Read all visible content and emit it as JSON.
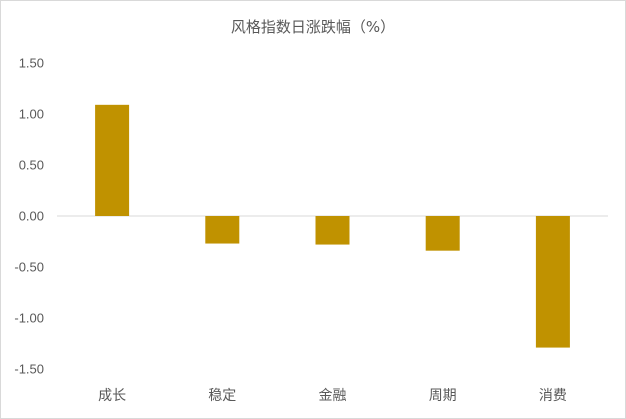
{
  "chart_data": {
    "type": "bar",
    "title": "风格指数日涨跌幅（%）",
    "categories": [
      "成长",
      "稳定",
      "金融",
      "周期",
      "消费"
    ],
    "values": [
      1.09,
      -0.27,
      -0.28,
      -0.34,
      -1.29
    ],
    "ylim": [
      -1.5,
      1.5
    ],
    "yticks": [
      "1.50",
      "1.00",
      "0.50",
      "0.00",
      "-0.50",
      "-1.00",
      "-1.50"
    ],
    "ytick_values": [
      1.5,
      1.0,
      0.5,
      0.0,
      -0.5,
      -1.0,
      -1.5
    ],
    "bar_color": "#C09200",
    "grid": false,
    "legend": "none"
  }
}
